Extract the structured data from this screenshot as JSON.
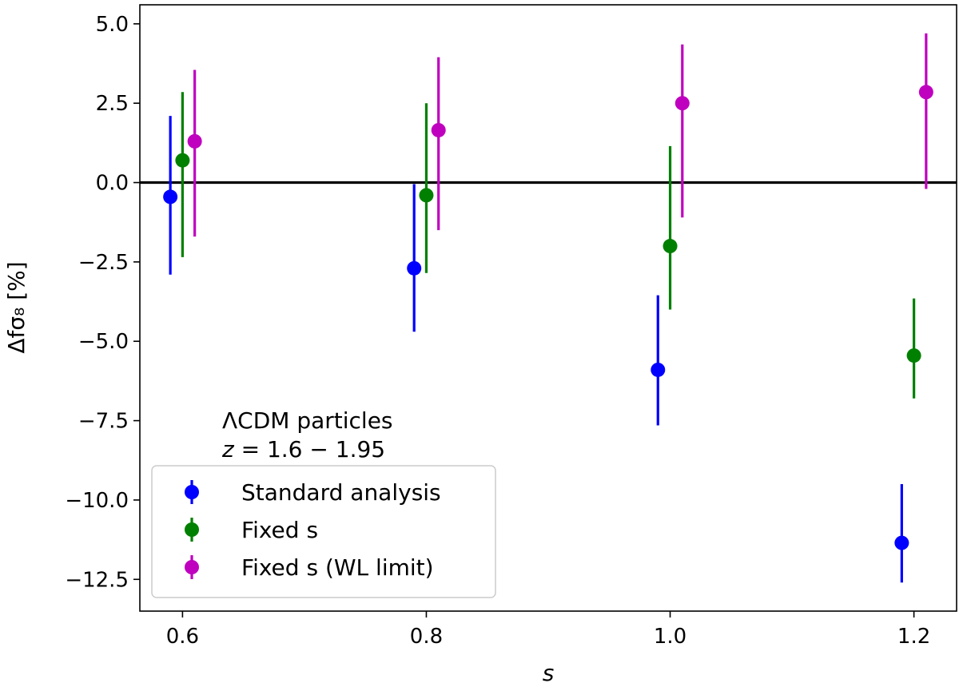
{
  "chart_data": {
    "type": "scatter",
    "title": "",
    "xlabel": "s",
    "ylabel": "Δfσ₈ [%]",
    "xlim": [
      0.565,
      1.235
    ],
    "ylim": [
      -13.5,
      5.6
    ],
    "x_ticks": [
      0.6,
      0.8,
      1.0,
      1.2
    ],
    "x_tick_labels": [
      "0.6",
      "0.8",
      "1.0",
      "1.2"
    ],
    "y_ticks": [
      5.0,
      2.5,
      0.0,
      -2.5,
      -5.0,
      -7.5,
      -10.0,
      -12.5
    ],
    "y_tick_labels": [
      "5.0",
      "2.5",
      "0.0",
      "−2.5",
      "−5.0",
      "−7.5",
      "−10.0",
      "−12.5"
    ],
    "grid": false,
    "reference_line": {
      "y": 0.0,
      "color": "#000000"
    },
    "annotation": {
      "line1": "ΛCDM particles",
      "line2_var": "z",
      "line2_rest": " = 1.6 − 1.95"
    },
    "legend_position": "lower-left",
    "series": [
      {
        "name": "Standard analysis",
        "color": "#0000ff",
        "points": [
          {
            "x": 0.59,
            "y": -0.45,
            "ylo": -2.9,
            "yhi": 2.1
          },
          {
            "x": 0.79,
            "y": -2.7,
            "ylo": -4.7,
            "yhi": -0.05
          },
          {
            "x": 0.99,
            "y": -5.9,
            "ylo": -7.65,
            "yhi": -3.55
          },
          {
            "x": 1.19,
            "y": -11.35,
            "ylo": -12.6,
            "yhi": -9.5
          }
        ]
      },
      {
        "name": "Fixed s",
        "color": "#008000",
        "points": [
          {
            "x": 0.6,
            "y": 0.7,
            "ylo": -2.35,
            "yhi": 2.85
          },
          {
            "x": 0.8,
            "y": -0.4,
            "ylo": -2.85,
            "yhi": 2.5
          },
          {
            "x": 1.0,
            "y": -2.0,
            "ylo": -4.0,
            "yhi": 1.15
          },
          {
            "x": 1.2,
            "y": -5.45,
            "ylo": -6.8,
            "yhi": -3.65
          }
        ]
      },
      {
        "name": "Fixed s (WL limit)",
        "color": "#bf00bf",
        "points": [
          {
            "x": 0.61,
            "y": 1.3,
            "ylo": -1.7,
            "yhi": 3.55
          },
          {
            "x": 0.81,
            "y": 1.65,
            "ylo": -1.5,
            "yhi": 3.95
          },
          {
            "x": 1.01,
            "y": 2.5,
            "ylo": -1.1,
            "yhi": 4.35
          },
          {
            "x": 1.21,
            "y": 2.85,
            "ylo": -0.2,
            "yhi": 4.7
          }
        ]
      }
    ]
  }
}
